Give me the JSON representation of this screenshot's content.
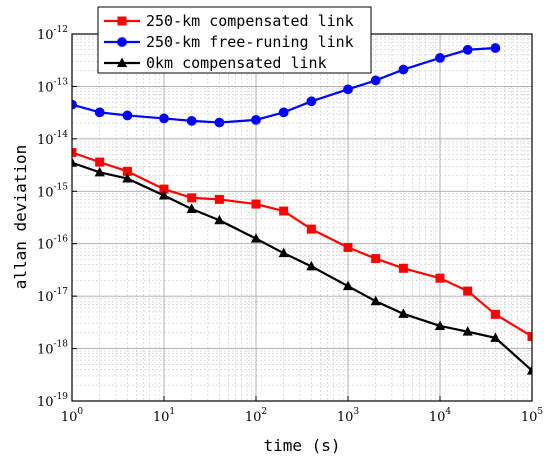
{
  "chart_data": {
    "type": "line",
    "xlabel": "time (s)",
    "ylabel": "allan deviation",
    "x_scale": "log",
    "y_scale": "log",
    "xlim": [
      1,
      100000
    ],
    "ylim": [
      1e-19,
      1e-12
    ],
    "grid": true,
    "legend_position": "top-left",
    "x_ticks": [
      {
        "base": "10",
        "exp": "0"
      },
      {
        "base": "10",
        "exp": "1"
      },
      {
        "base": "10",
        "exp": "2"
      },
      {
        "base": "10",
        "exp": "3"
      },
      {
        "base": "10",
        "exp": "4"
      },
      {
        "base": "10",
        "exp": "5"
      }
    ],
    "y_ticks": [
      {
        "base": "10",
        "exp": "-19"
      },
      {
        "base": "10",
        "exp": "-18"
      },
      {
        "base": "10",
        "exp": "-17"
      },
      {
        "base": "10",
        "exp": "-16"
      },
      {
        "base": "10",
        "exp": "-15"
      },
      {
        "base": "10",
        "exp": "-14"
      },
      {
        "base": "10",
        "exp": "-13"
      },
      {
        "base": "10",
        "exp": "-12"
      }
    ],
    "series": [
      {
        "name": "250-km compensated link",
        "color": "#ff0000",
        "marker": "square",
        "x": [
          1,
          2,
          4,
          10,
          20,
          40,
          100,
          200,
          400,
          1000,
          2000,
          4000,
          10000,
          20000,
          40000,
          100000
        ],
        "y": [
          5.5e-15,
          3.6e-15,
          2.4e-15,
          1.1e-15,
          7.5e-16,
          7e-16,
          5.7e-16,
          4.2e-16,
          1.9e-16,
          8.5e-17,
          5.2e-17,
          3.4e-17,
          2.2e-17,
          1.25e-17,
          4.5e-18,
          1.7e-18
        ]
      },
      {
        "name": "250-km free-runing link",
        "color": "#0000ff",
        "marker": "circle",
        "x": [
          1,
          2,
          4,
          10,
          20,
          40,
          100,
          200,
          400,
          1000,
          2000,
          4000,
          10000,
          20000,
          40000
        ],
        "y": [
          4.5e-14,
          3.2e-14,
          2.8e-14,
          2.45e-14,
          2.2e-14,
          2.05e-14,
          2.3e-14,
          3.2e-14,
          5.2e-14,
          8.8e-14,
          1.3e-13,
          2.1e-13,
          3.5e-13,
          5e-13,
          5.4e-13
        ]
      },
      {
        "name": "0km compensated link",
        "color": "#000000",
        "marker": "triangle",
        "x": [
          1,
          2,
          4,
          10,
          20,
          40,
          100,
          200,
          400,
          1000,
          2000,
          4000,
          10000,
          20000,
          40000,
          100000
        ],
        "y": [
          3.5e-15,
          2.3e-15,
          1.75e-15,
          8.3e-16,
          4.6e-16,
          2.8e-16,
          1.25e-16,
          6.6e-17,
          3.7e-17,
          1.55e-17,
          8e-18,
          4.6e-18,
          2.7e-18,
          2.1e-18,
          1.6e-18,
          3.8e-19
        ]
      }
    ]
  }
}
